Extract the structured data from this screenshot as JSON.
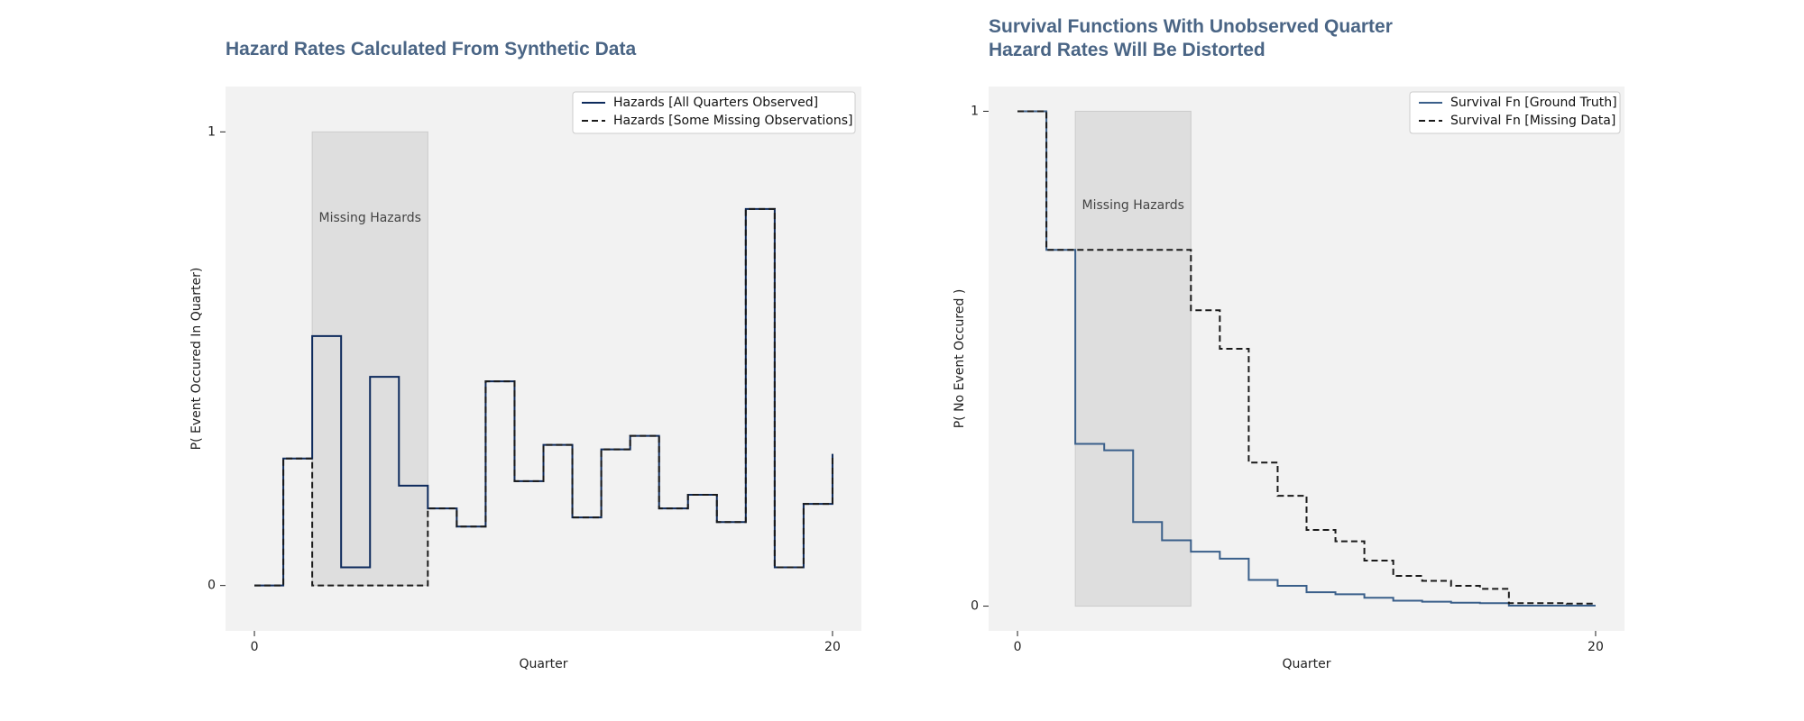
{
  "chart_data": [
    {
      "type": "line",
      "step": "post",
      "title": "Hazard Rates Calculated From Synthetic Data",
      "xlabel": "Quarter",
      "ylabel": "P( Event Occured In Quarter)",
      "xticks": [
        "0",
        "20"
      ],
      "yticks": [
        "0",
        "1"
      ],
      "xlim": [
        -1,
        21
      ],
      "ylim": [
        -0.1,
        1.1
      ],
      "grid": false,
      "legend_position": "top-right",
      "background": "#f2f2f2",
      "shaded_region": {
        "x": [
          2,
          6
        ],
        "y": [
          0,
          1
        ],
        "label": "Missing Hazards",
        "color": "#dedede"
      },
      "x": [
        0,
        1,
        2,
        3,
        4,
        5,
        6,
        7,
        8,
        9,
        10,
        11,
        12,
        13,
        14,
        15,
        16,
        17,
        18,
        19,
        20
      ],
      "series": [
        {
          "name": "Hazards [All Quarters Observed]",
          "color": "#0d2a5c",
          "dash": "solid",
          "values": [
            0.0,
            0.28,
            0.55,
            0.04,
            0.46,
            0.22,
            0.17,
            0.13,
            0.45,
            0.23,
            0.31,
            0.15,
            0.3,
            0.33,
            0.17,
            0.2,
            0.14,
            0.83,
            0.04,
            0.18,
            0.29
          ]
        },
        {
          "name": "Hazards [Some Missing Observations]",
          "color": "#1a1a1a",
          "dash": "dashed",
          "values": [
            0.0,
            0.28,
            0.0,
            0.0,
            0.0,
            0.0,
            0.17,
            0.13,
            0.45,
            0.23,
            0.31,
            0.15,
            0.3,
            0.33,
            0.17,
            0.2,
            0.14,
            0.83,
            0.04,
            0.18,
            0.29
          ]
        }
      ]
    },
    {
      "type": "line",
      "step": "post",
      "title": "Survival Functions With Unobserved Quarter\nHazard Rates Will Be Distorted",
      "xlabel": "Quarter",
      "ylabel": "P( No Event Occured )",
      "xticks": [
        "0",
        "20"
      ],
      "yticks": [
        "0",
        "1"
      ],
      "xlim": [
        -1,
        21
      ],
      "ylim": [
        -0.05,
        1.05
      ],
      "grid": false,
      "legend_position": "top-right",
      "background": "#f2f2f2",
      "shaded_region": {
        "x": [
          2,
          6
        ],
        "y": [
          0,
          1
        ],
        "label": "Missing Hazards",
        "color": "#dedede"
      },
      "x": [
        0,
        1,
        2,
        3,
        4,
        5,
        6,
        7,
        8,
        9,
        10,
        11,
        12,
        13,
        14,
        15,
        16,
        17,
        18,
        19,
        20
      ],
      "series": [
        {
          "name": "Survival Fn [Ground Truth]",
          "color": "#3a5f8a",
          "dash": "solid",
          "values": [
            1.0,
            0.72,
            0.328,
            0.315,
            0.17,
            0.133,
            0.11,
            0.096,
            0.053,
            0.041,
            0.028,
            0.024,
            0.017,
            0.011,
            0.009,
            0.007,
            0.006,
            0.001,
            0.001,
            0.001,
            0.001
          ]
        },
        {
          "name": "Survival Fn [Missing Data]",
          "color": "#1a1a1a",
          "dash": "dashed",
          "values": [
            1.0,
            0.72,
            0.72,
            0.72,
            0.72,
            0.72,
            0.598,
            0.52,
            0.29,
            0.223,
            0.154,
            0.131,
            0.092,
            0.061,
            0.051,
            0.041,
            0.035,
            0.006,
            0.006,
            0.005,
            0.004
          ]
        }
      ]
    }
  ]
}
